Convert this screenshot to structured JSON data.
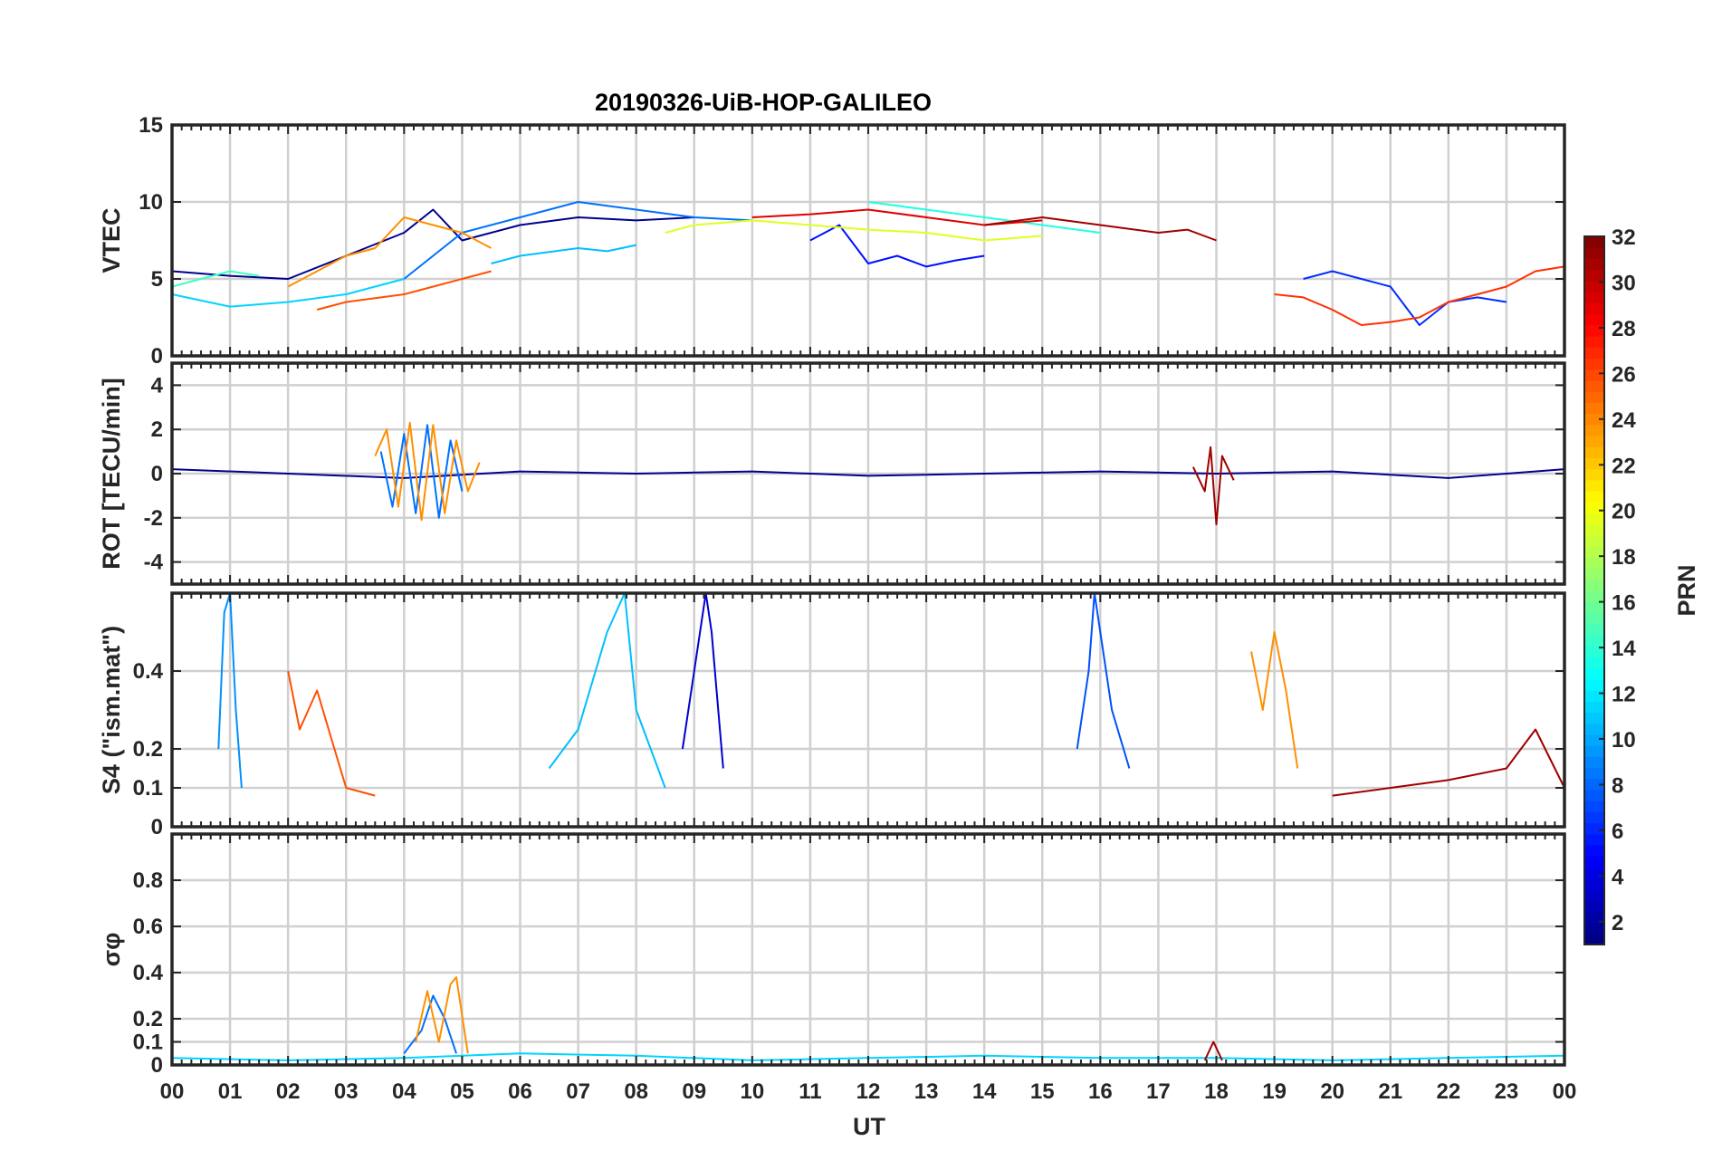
{
  "chart_data": {
    "type": "line",
    "title": "20190326-UiB-HOP-GALILEO",
    "xlabel": "UT",
    "x_ticks": [
      "00",
      "01",
      "02",
      "03",
      "04",
      "05",
      "06",
      "07",
      "08",
      "09",
      "10",
      "11",
      "12",
      "13",
      "14",
      "15",
      "16",
      "17",
      "18",
      "19",
      "20",
      "21",
      "22",
      "23",
      "00"
    ],
    "xlim": [
      0,
      24
    ],
    "grid": true,
    "panels": [
      {
        "name": "vtec",
        "ylabel": "VTEC",
        "ylim": [
          0,
          15
        ],
        "yticks": [
          0,
          5,
          10,
          15
        ],
        "series": [
          {
            "name": "PRN 1",
            "prn": 1,
            "color": "#00008f",
            "x": [
              0,
              1,
              2,
              3,
              4,
              4.5,
              5,
              6,
              7,
              8,
              9
            ],
            "y": [
              5.5,
              5.2,
              5,
              6.5,
              8,
              9.5,
              7.5,
              8.5,
              9,
              8.8,
              9
            ]
          },
          {
            "name": "PRN 3",
            "prn": 3,
            "color": "#0010ff",
            "x": [
              11,
              11.5,
              12,
              12.5,
              13,
              13.5,
              14
            ],
            "y": [
              7.5,
              8.5,
              6,
              6.5,
              5.8,
              6.2,
              6.5
            ]
          },
          {
            "name": "PRN 4",
            "prn": 4,
            "color": "#002fff",
            "x": [
              19.5,
              20,
              20.5,
              21,
              21.5,
              22,
              22.5,
              23
            ],
            "y": [
              5,
              5.5,
              5,
              4.5,
              2,
              3.5,
              3.8,
              3.5
            ]
          },
          {
            "name": "PRN 8",
            "prn": 8,
            "color": "#0070ff",
            "x": [
              4,
              5,
              6,
              7,
              8,
              9,
              10
            ],
            "y": [
              5,
              8,
              9,
              10,
              9.5,
              9,
              8.8
            ]
          },
          {
            "name": "PRN 12",
            "prn": 12,
            "color": "#00bfff",
            "x": [
              5.5,
              6,
              7,
              7.5,
              8
            ],
            "y": [
              6,
              6.5,
              7,
              6.8,
              7.2
            ]
          },
          {
            "name": "PRN 13",
            "prn": 13,
            "color": "#00d4ff",
            "x": [
              0,
              1,
              2,
              3,
              3.5,
              4
            ],
            "y": [
              4,
              3.2,
              3.5,
              4,
              4.5,
              5
            ]
          },
          {
            "name": "PRN 14",
            "prn": 14,
            "color": "#20ffdf",
            "x": [
              12,
              13,
              14,
              15,
              16
            ],
            "y": [
              10,
              9.5,
              9,
              8.5,
              8
            ]
          },
          {
            "name": "PRN 15",
            "prn": 15,
            "color": "#40ffbf",
            "x": [
              0,
              0.5,
              1,
              1.5
            ],
            "y": [
              4.5,
              5,
              5.5,
              5.2
            ]
          },
          {
            "name": "PRN 19",
            "prn": 19,
            "color": "#dfff20",
            "x": [
              8.5,
              9,
              10,
              11,
              12,
              13,
              14,
              15
            ],
            "y": [
              8,
              8.5,
              8.8,
              8.5,
              8.2,
              8,
              7.5,
              7.8
            ]
          },
          {
            "name": "PRN 23",
            "prn": 23,
            "color": "#ff8f00",
            "x": [
              2,
              2.5,
              3,
              3.5,
              4,
              4.5,
              5,
              5.5
            ],
            "y": [
              4.5,
              5.5,
              6.5,
              7,
              9,
              8.5,
              8,
              7
            ]
          },
          {
            "name": "PRN 25",
            "prn": 25,
            "color": "#ff5000",
            "x": [
              2.5,
              3,
              4,
              4.5,
              5,
              5.5
            ],
            "y": [
              3,
              3.5,
              4,
              4.5,
              5,
              5.5
            ]
          },
          {
            "name": "PRN 27",
            "prn": 27,
            "color": "#ff3000",
            "x": [
              19,
              19.5,
              20,
              20.5,
              21,
              21.5,
              22,
              22.5,
              23,
              23.5,
              24
            ],
            "y": [
              4,
              3.8,
              3,
              2,
              2.2,
              2.5,
              3.5,
              4,
              4.5,
              5.5,
              5.8
            ]
          },
          {
            "name": "PRN 30",
            "prn": 30,
            "color": "#df0000",
            "x": [
              10,
              11,
              12,
              13,
              14,
              15
            ],
            "y": [
              9,
              9.2,
              9.5,
              9,
              8.5,
              8.8
            ]
          },
          {
            "name": "PRN 31",
            "prn": 31,
            "color": "#9f0000",
            "x": [
              14,
              15,
              16,
              17,
              17.5,
              18
            ],
            "y": [
              8.5,
              9,
              8.5,
              8,
              8.2,
              7.5
            ]
          }
        ]
      },
      {
        "name": "rot",
        "ylabel": "ROT [TECU/min]",
        "ylim": [
          -5,
          5
        ],
        "yticks": [
          -4,
          -2,
          0,
          2,
          4
        ],
        "series": [
          {
            "name": "ROT trace (PRN 1)",
            "prn": 1,
            "color": "#00008f",
            "x": [
              0,
              2,
              4,
              6,
              8,
              10,
              12,
              14,
              16,
              18,
              20,
              22,
              24
            ],
            "y": [
              0.2,
              0,
              -0.2,
              0.1,
              0,
              0.1,
              -0.1,
              0,
              0.1,
              0,
              0.1,
              -0.2,
              0.2
            ]
          },
          {
            "name": "ROT trace (PRN 8)",
            "prn": 8,
            "color": "#0070ff",
            "x": [
              3.6,
              3.8,
              4,
              4.2,
              4.4,
              4.6,
              4.8,
              5
            ],
            "y": [
              1,
              -1.5,
              1.8,
              -1.8,
              2.2,
              -2,
              1.5,
              -0.8
            ]
          },
          {
            "name": "ROT trace (PRN 23)",
            "prn": 23,
            "color": "#ff8f00",
            "x": [
              3.5,
              3.7,
              3.9,
              4.1,
              4.3,
              4.5,
              4.7,
              4.9,
              5.1,
              5.3
            ],
            "y": [
              0.8,
              2,
              -1.5,
              2.3,
              -2.1,
              2.2,
              -1.8,
              1.5,
              -0.8,
              0.5
            ]
          },
          {
            "name": "ROT trace (PRN 31)",
            "prn": 31,
            "color": "#9f0000",
            "x": [
              17.6,
              17.8,
              17.9,
              18,
              18.1,
              18.3
            ],
            "y": [
              0.3,
              -0.8,
              1.2,
              -2.3,
              0.8,
              -0.3
            ]
          }
        ]
      },
      {
        "name": "s4",
        "ylabel": "S4 (\"ism.mat\")",
        "ylim": [
          0,
          0.6
        ],
        "yticks": [
          0,
          0.1,
          0.2,
          0.4
        ],
        "series": [
          {
            "name": "S4 (PRN 10)",
            "prn": 10,
            "color": "#0090ff",
            "x": [
              0.8,
              0.9,
              1,
              1.1,
              1.2
            ],
            "y": [
              0.2,
              0.55,
              0.6,
              0.3,
              0.1
            ]
          },
          {
            "name": "S4 (PRN 12)",
            "prn": 12,
            "color": "#00bfff",
            "x": [
              6.5,
              7,
              7.5,
              7.8,
              8,
              8.5
            ],
            "y": [
              0.15,
              0.25,
              0.5,
              0.6,
              0.3,
              0.1
            ]
          },
          {
            "name": "S4 (PRN 2)",
            "prn": 2,
            "color": "#0000cf",
            "x": [
              8.8,
              9,
              9.2,
              9.3,
              9.5
            ],
            "y": [
              0.2,
              0.4,
              0.6,
              0.5,
              0.15
            ]
          },
          {
            "name": "S4 (PRN 6)",
            "prn": 6,
            "color": "#0050ff",
            "x": [
              15.6,
              15.8,
              15.9,
              16,
              16.2,
              16.5
            ],
            "y": [
              0.2,
              0.4,
              0.6,
              0.5,
              0.3,
              0.15
            ]
          },
          {
            "name": "S4 (PRN 23)",
            "prn": 23,
            "color": "#ff8f00",
            "x": [
              18.6,
              18.8,
              19,
              19.2,
              19.4
            ],
            "y": [
              0.45,
              0.3,
              0.5,
              0.35,
              0.15
            ]
          },
          {
            "name": "S4 (PRN 25)",
            "prn": 25,
            "color": "#ff5000",
            "x": [
              2,
              2.2,
              2.5,
              2.8,
              3,
              3.5
            ],
            "y": [
              0.4,
              0.25,
              0.35,
              0.2,
              0.1,
              0.08
            ]
          },
          {
            "name": "S4 (PRN 31)",
            "prn": 31,
            "color": "#9f0000",
            "x": [
              20,
              21,
              22,
              23,
              23.5,
              24
            ],
            "y": [
              0.08,
              0.1,
              0.12,
              0.15,
              0.25,
              0.1
            ]
          }
        ]
      },
      {
        "name": "sigma_phi",
        "ylabel": "σφ",
        "ylim": [
          0,
          1
        ],
        "yticks": [
          0,
          0.1,
          0.2,
          0.4,
          0.6,
          0.8
        ],
        "series": [
          {
            "name": "σφ (PRN 13)",
            "prn": 13,
            "color": "#00d4ff",
            "x": [
              0,
              2,
              4,
              6,
              8,
              10,
              12,
              14,
              16,
              18,
              20,
              22,
              24
            ],
            "y": [
              0.03,
              0.02,
              0.03,
              0.05,
              0.04,
              0.02,
              0.03,
              0.04,
              0.03,
              0.03,
              0.02,
              0.03,
              0.04
            ]
          },
          {
            "name": "σφ (PRN 8)",
            "prn": 8,
            "color": "#0070ff",
            "x": [
              4,
              4.3,
              4.5,
              4.7,
              4.9
            ],
            "y": [
              0.05,
              0.15,
              0.3,
              0.2,
              0.05
            ]
          },
          {
            "name": "σφ (PRN 23)",
            "prn": 23,
            "color": "#ff8f00",
            "x": [
              4.2,
              4.4,
              4.6,
              4.8,
              4.9,
              5.1
            ],
            "y": [
              0.1,
              0.32,
              0.1,
              0.35,
              0.38,
              0.05
            ]
          },
          {
            "name": "σφ (PRN 31)",
            "prn": 31,
            "color": "#9f0000",
            "x": [
              17.8,
              17.95,
              18.1
            ],
            "y": [
              0.02,
              0.1,
              0.02
            ]
          }
        ]
      }
    ],
    "colorbar": {
      "label": "PRN",
      "range": [
        1,
        32
      ],
      "ticks": [
        2,
        4,
        6,
        8,
        10,
        12,
        14,
        16,
        18,
        20,
        22,
        24,
        26,
        28,
        30,
        32
      ],
      "colormap": "jet"
    }
  }
}
